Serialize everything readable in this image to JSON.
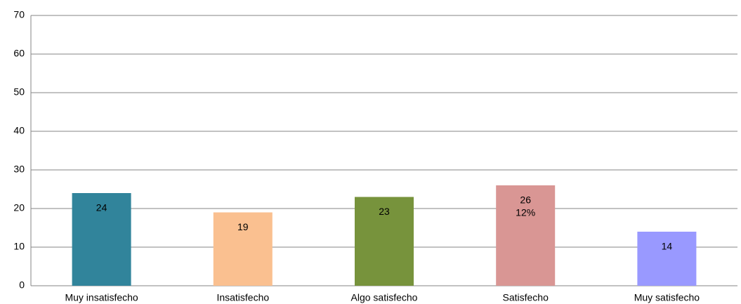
{
  "chart_data": {
    "type": "bar",
    "categories": [
      "Muy insatisfecho",
      "Insatisfecho",
      "Algo satisfecho",
      "Satisfecho",
      "Muy satisfecho"
    ],
    "values": [
      24,
      19,
      23,
      26,
      14
    ],
    "colors": [
      "#31849b",
      "#fac090",
      "#77933c",
      "#d99694",
      "#9999ff"
    ],
    "annotations": [
      {
        "text": "12%",
        "category": "Satisfecho"
      }
    ],
    "ylim": [
      0,
      70
    ],
    "yticks": [
      0,
      10,
      20,
      30,
      40,
      50,
      60,
      70
    ],
    "grid": true
  }
}
